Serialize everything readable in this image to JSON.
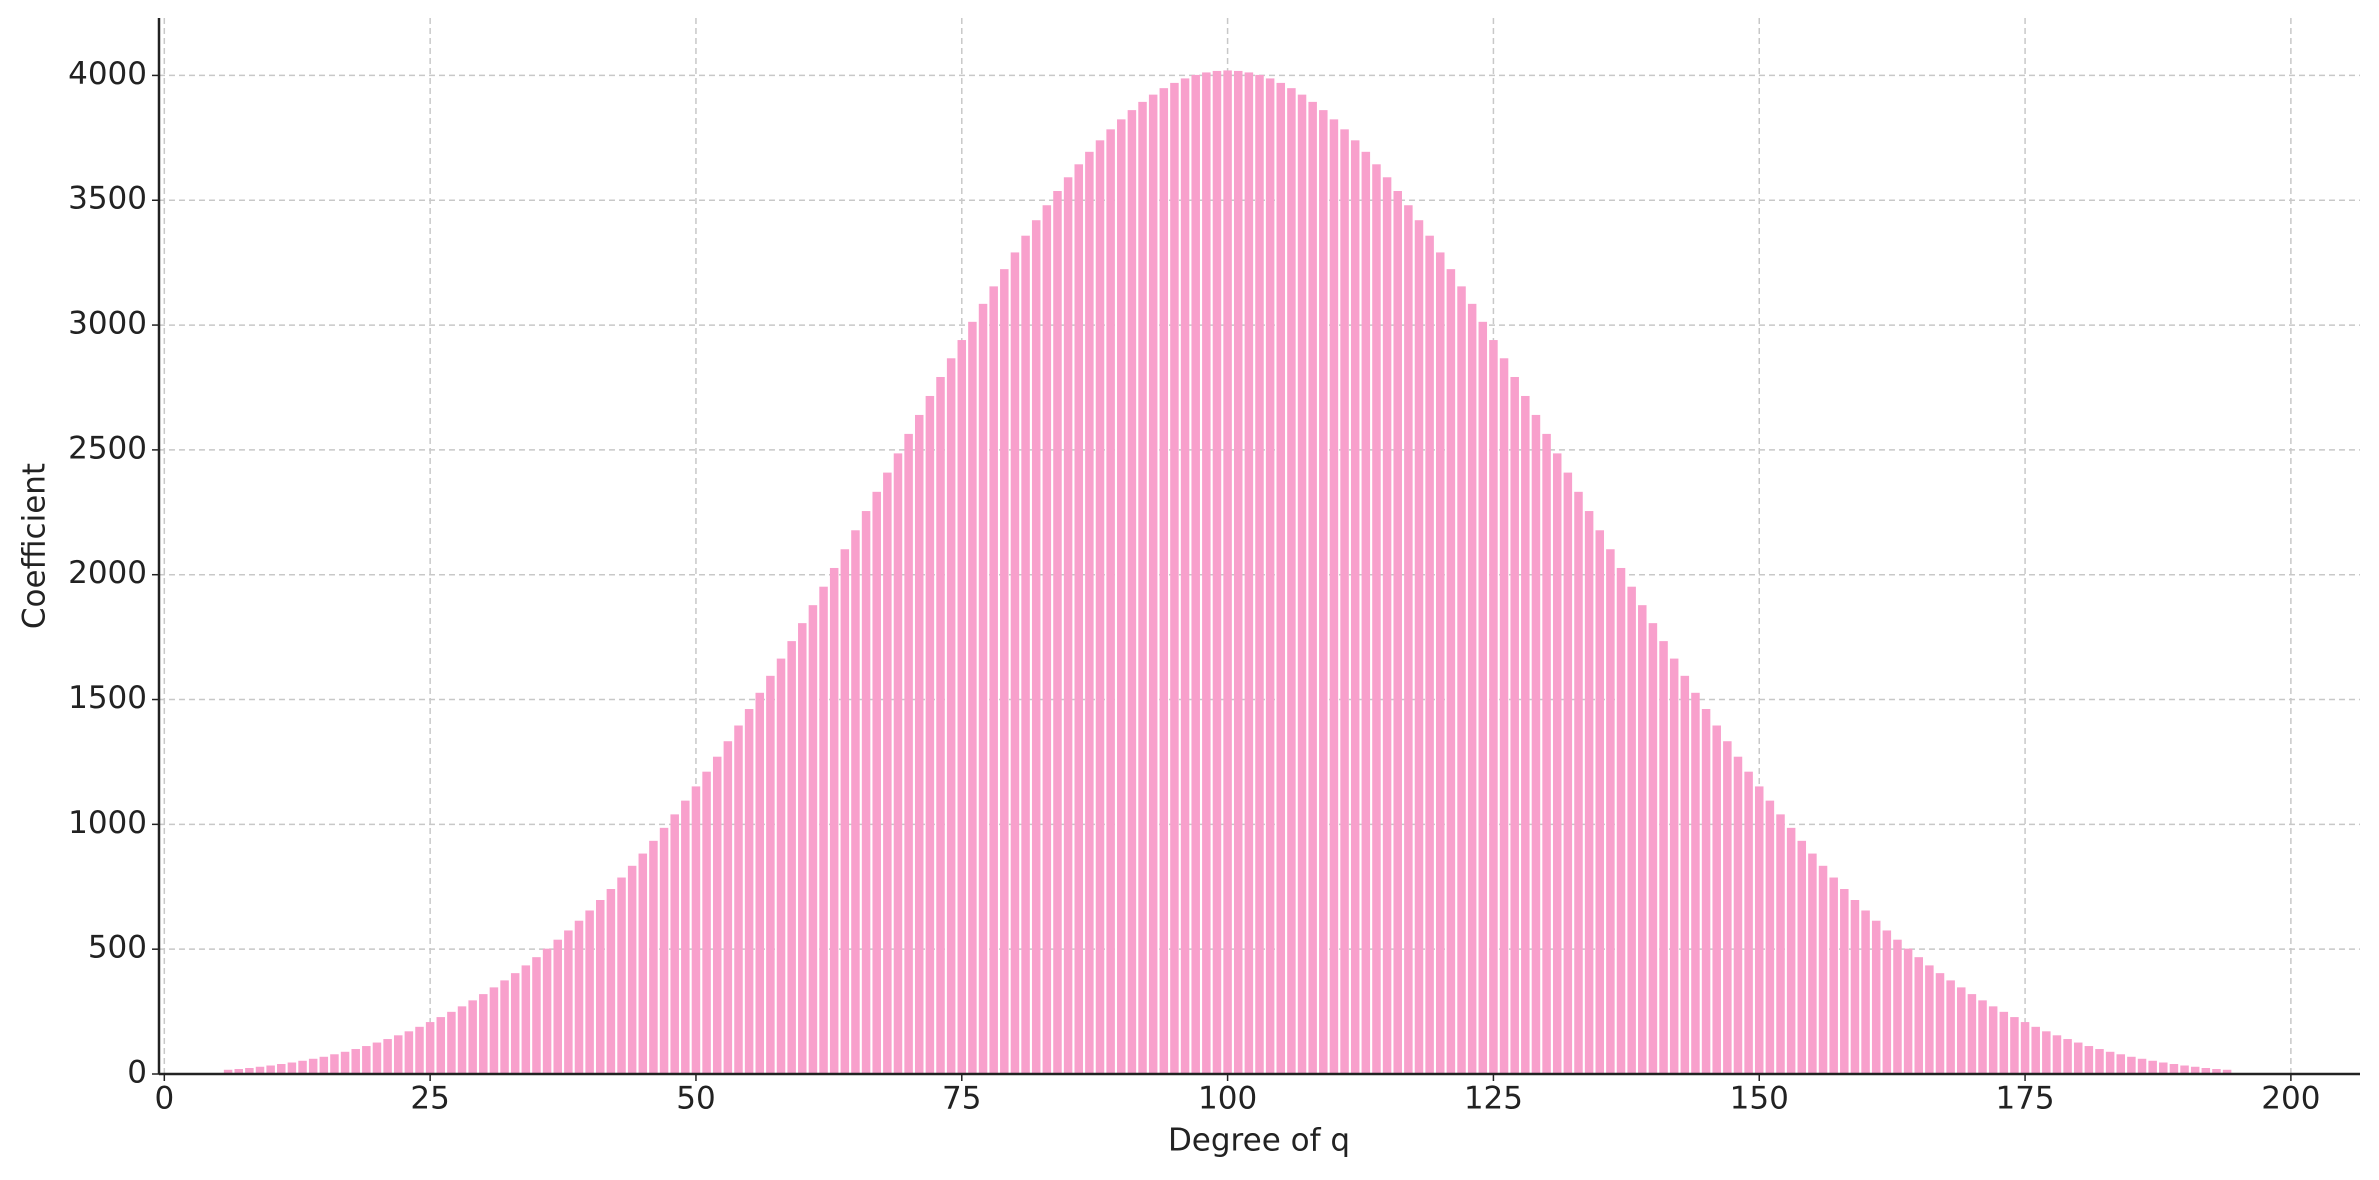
{
  "chart_data": {
    "type": "bar",
    "xlabel": "Degree of q",
    "ylabel": "Coefficient",
    "color": "#f8a0cc",
    "grid": true,
    "x": [
      6,
      7,
      8,
      9,
      10,
      11,
      12,
      13,
      14,
      15,
      16,
      17,
      18,
      19,
      20,
      21,
      22,
      23,
      24,
      25,
      26,
      27,
      28,
      29,
      30,
      31,
      32,
      33,
      34,
      35,
      36,
      37,
      38,
      39,
      40,
      41,
      42,
      43,
      44,
      45,
      46,
      47,
      48,
      49,
      50,
      51,
      52,
      53,
      54,
      55,
      56,
      57,
      58,
      59,
      60,
      61,
      62,
      63,
      64,
      65,
      66,
      67,
      68,
      69,
      70,
      71,
      72,
      73,
      74,
      75,
      76,
      77,
      78,
      79,
      80,
      81,
      82,
      83,
      84,
      85,
      86,
      87,
      88,
      89,
      90,
      91,
      92,
      93,
      94,
      95,
      96,
      97,
      98,
      99,
      100,
      101,
      102,
      103,
      104,
      105,
      106,
      107,
      108,
      109,
      110,
      111,
      112,
      113,
      114,
      115,
      116,
      117,
      118,
      119,
      120,
      121,
      122,
      123,
      124,
      125,
      126,
      127,
      128,
      129,
      130,
      131,
      132,
      133,
      134,
      135,
      136,
      137,
      138,
      139,
      140,
      141,
      142,
      143,
      144,
      145,
      146,
      147,
      148,
      149,
      150,
      151,
      152,
      153,
      154,
      155,
      156,
      157,
      158,
      159,
      160,
      161,
      162,
      163,
      164,
      165,
      166,
      167,
      168,
      169,
      170,
      171,
      172,
      173,
      174,
      175,
      176,
      177,
      178,
      179,
      180,
      181,
      182,
      183,
      184,
      185,
      186,
      187,
      188,
      189,
      190,
      191,
      192,
      193,
      194
    ],
    "values": [
      17,
      20,
      24,
      29,
      34,
      40,
      46,
      53,
      61,
      69,
      79,
      89,
      100,
      112,
      126,
      140,
      155,
      171,
      189,
      208,
      228,
      249,
      271,
      295,
      320,
      347,
      375,
      404,
      435,
      468,
      502,
      538,
      575,
      614,
      655,
      697,
      741,
      787,
      834,
      883,
      934,
      986,
      1040,
      1095,
      1152,
      1211,
      1271,
      1333,
      1396,
      1462,
      1527,
      1595,
      1664,
      1734,
      1806,
      1878,
      1952,
      2027,
      2102,
      2178,
      2255,
      2332,
      2409,
      2486,
      2564,
      2640,
      2716,
      2792,
      2867,
      2940,
      3013,
      3085,
      3155,
      3224,
      3291,
      3358,
      3420,
      3480,
      3537,
      3592,
      3644,
      3694,
      3740,
      3784,
      3824,
      3861,
      3894,
      3923,
      3949,
      3970,
      3988,
      4002,
      4012,
      4018,
      4020,
      4018,
      4012,
      4002,
      3988,
      3970,
      3949,
      3923,
      3894,
      3861,
      3824,
      3784,
      3740,
      3694,
      3644,
      3592,
      3537,
      3480,
      3420,
      3358,
      3291,
      3224,
      3155,
      3085,
      3013,
      2940,
      2867,
      2792,
      2716,
      2640,
      2564,
      2486,
      2409,
      2332,
      2255,
      2178,
      2102,
      2027,
      1952,
      1878,
      1806,
      1734,
      1664,
      1595,
      1527,
      1462,
      1396,
      1333,
      1271,
      1211,
      1152,
      1095,
      1040,
      986,
      934,
      883,
      834,
      787,
      741,
      697,
      655,
      614,
      575,
      538,
      502,
      468,
      435,
      404,
      375,
      347,
      320,
      295,
      271,
      249,
      228,
      208,
      189,
      171,
      155,
      140,
      126,
      112,
      100,
      89,
      79,
      69,
      61,
      53,
      46,
      40,
      34,
      29,
      24,
      20,
      17
    ],
    "xlim": [
      -0.5,
      206.5
    ],
    "ylim": [
      0,
      4230
    ],
    "xticks": [
      0,
      25,
      50,
      75,
      100,
      125,
      150,
      175,
      200
    ],
    "yticks": [
      0,
      500,
      1000,
      1500,
      2000,
      2500,
      3000,
      3500,
      4000
    ]
  }
}
